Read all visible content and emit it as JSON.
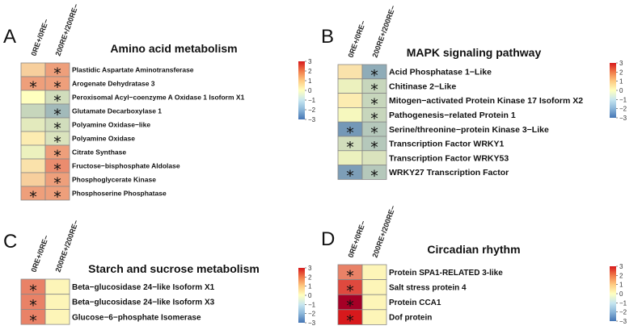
{
  "colors": {
    "low": "#4575b4",
    "mid": "#ffffbf",
    "high": "#d7191c",
    "darkhigh": "#a50026",
    "border": "#888888"
  },
  "colorbar_ticks": [
    3,
    2,
    1,
    0,
    -1,
    -2,
    -3
  ],
  "chart_data": [
    {
      "type": "heatmap",
      "panel": "A",
      "title": "Amino acid metabolism",
      "columns": [
        "0RE+/0RE−",
        "200RE+/200RE−"
      ],
      "rows": [
        "Plastidic Aspartate Aminotransferase",
        "Arogenate Dehydratase 3",
        "Peroxisomal Acyl−coenzyme A Oxidase 1 Isoform X1",
        "Glutamate Decarboxylase 1",
        "Polyamine Oxidase−like",
        "Polyamine Oxidase",
        "Citrate Synthase",
        "Fructose−bisphosphate Aldolase",
        "Phosphoglycerate Kinase",
        "Phosphoserine Phosphatase"
      ],
      "values": [
        [
          0.5,
          1.0
        ],
        [
          1.0,
          1.0
        ],
        [
          0.0,
          -0.5
        ],
        [
          -0.6,
          -1.0
        ],
        [
          -0.3,
          -0.5
        ],
        [
          0.2,
          -0.4
        ],
        [
          -0.2,
          1.0
        ],
        [
          0.3,
          1.2
        ],
        [
          0.5,
          1.0
        ],
        [
          1.0,
          1.0
        ]
      ],
      "significant": [
        [
          false,
          true
        ],
        [
          true,
          true
        ],
        [
          false,
          true
        ],
        [
          false,
          true
        ],
        [
          false,
          true
        ],
        [
          false,
          true
        ],
        [
          false,
          true
        ],
        [
          false,
          true
        ],
        [
          false,
          true
        ],
        [
          true,
          true
        ]
      ],
      "scale": [
        -3,
        3
      ]
    },
    {
      "type": "heatmap",
      "panel": "B",
      "title": "MAPK signaling pathway",
      "columns": [
        "0RE+/0RE−",
        "200RE+/200RE−"
      ],
      "rows": [
        "Acid Phosphatase 1−Like",
        "Chitinase 2−Like",
        "Mitogen−activated Protein Kinase 17 Isoform X2",
        "Pathogenesis−related Protein 1",
        "Serine/threonine−protein Kinase 3−Like",
        "Transcription Factor WRKY1",
        "Transcription Factor WRKY53",
        "WRKY27 Transcription Factor"
      ],
      "values": [
        [
          0.3,
          -1.2
        ],
        [
          -0.2,
          -0.6
        ],
        [
          0.2,
          -0.6
        ],
        [
          -0.1,
          -0.6
        ],
        [
          -1.5,
          -0.8
        ],
        [
          -0.5,
          -0.8
        ],
        [
          -0.2,
          -0.4
        ],
        [
          -1.4,
          -0.8
        ]
      ],
      "significant": [
        [
          false,
          true
        ],
        [
          false,
          true
        ],
        [
          false,
          true
        ],
        [
          false,
          true
        ],
        [
          true,
          true
        ],
        [
          true,
          true
        ],
        [
          false,
          false
        ],
        [
          true,
          true
        ]
      ],
      "scale": [
        -3,
        3
      ]
    },
    {
      "type": "heatmap",
      "panel": "C",
      "title": "Starch and sucrose metabolism",
      "columns": [
        "0RE+/0RE−",
        "200RE+/200RE−"
      ],
      "rows": [
        "Beta−glucosidase 24−like Isoform X1",
        "Beta−glucosidase 24−like Isoform X3",
        "Glucose−6−phosphate Isomerase"
      ],
      "values": [
        [
          1.3,
          0.1
        ],
        [
          1.3,
          0.1
        ],
        [
          1.3,
          0.1
        ]
      ],
      "significant": [
        [
          true,
          false
        ],
        [
          true,
          false
        ],
        [
          true,
          false
        ]
      ],
      "scale": [
        -3,
        3
      ]
    },
    {
      "type": "heatmap",
      "panel": "D",
      "title": "Circadian rhythm",
      "columns": [
        "0RE+/0RE−",
        "200RE+/200RE−"
      ],
      "rows": [
        "Protein SPA1-RELATED 3-like",
        "Salt stress protein 4",
        "Protein CCA1",
        "Dof protein"
      ],
      "values": [
        [
          1.3,
          0.1
        ],
        [
          1.9,
          0.1
        ],
        [
          3.0,
          0.1
        ],
        [
          2.4,
          0.1
        ]
      ],
      "significant": [
        [
          true,
          false
        ],
        [
          true,
          false
        ],
        [
          true,
          false
        ],
        [
          true,
          false
        ]
      ],
      "scale": [
        -3,
        3
      ]
    }
  ]
}
